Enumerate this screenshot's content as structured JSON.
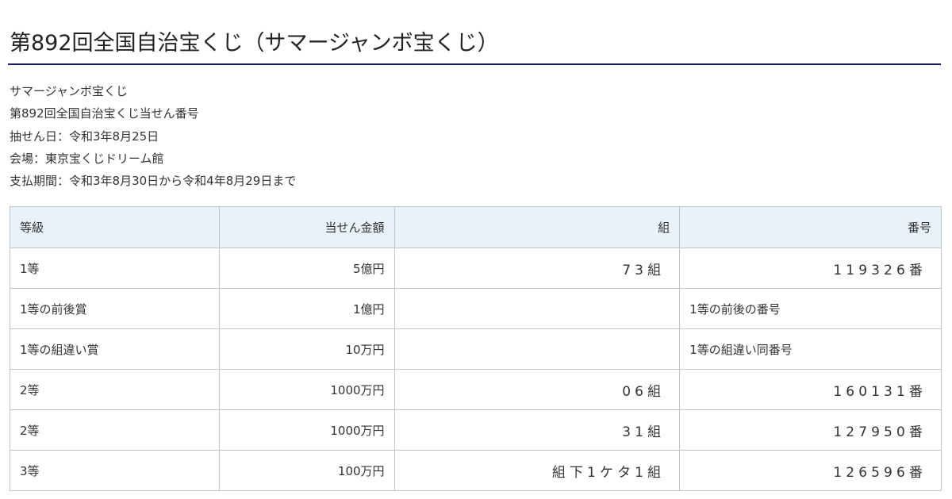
{
  "title": "第892回全国自治宝くじ（サマージャンボ宝くじ）",
  "info": [
    "サマージャンボ宝くじ",
    "第892回全国自治宝くじ当せん番号",
    "抽せん日：令和3年8月25日",
    "会場：東京宝くじドリーム館",
    "支払期間：令和3年8月30日から令和4年8月29日まで"
  ],
  "table": {
    "headers": [
      "等級",
      "当せん金額",
      "組",
      "番号"
    ],
    "rows": [
      [
        "1等",
        "5億円",
        "73組",
        "119326番"
      ],
      [
        "1等の前後賞",
        "1億円",
        "",
        "1等の前後の番号"
      ],
      [
        "1等の組違い賞",
        "10万円",
        "",
        "1等の組違い同番号"
      ],
      [
        "2等",
        "1000万円",
        "06組",
        "160131番"
      ],
      [
        "2等",
        "1000万円",
        "31組",
        "127950番"
      ],
      [
        "3等",
        "100万円",
        "組下1ケタ1組",
        "126596番"
      ]
    ]
  },
  "colors": {
    "rule": "#1a1a5e",
    "header_bg": "#e9f1fa",
    "border": "#c4c4c4"
  }
}
